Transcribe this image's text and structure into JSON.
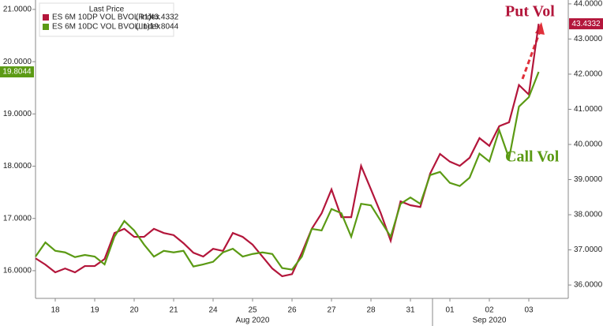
{
  "chart_data": {
    "type": "line",
    "legend_title": "Last Price",
    "categories": [
      null,
      null,
      "18",
      null,
      null,
      null,
      "19",
      null,
      null,
      null,
      "20",
      null,
      null,
      null,
      "21",
      null,
      null,
      null,
      "24",
      null,
      null,
      null,
      "25",
      null,
      null,
      null,
      "26",
      null,
      null,
      null,
      "27",
      null,
      null,
      null,
      "28",
      null,
      null,
      null,
      "31",
      null,
      null,
      null,
      "01",
      null,
      null,
      null,
      "02",
      null,
      null,
      null,
      "03",
      null
    ],
    "months": [
      {
        "label": "Aug 2020",
        "at": 22
      },
      {
        "label": "Sep 2020",
        "at": 46
      }
    ],
    "series": [
      {
        "name": "ES 6M 10DP VOL BVOL Index",
        "tag": "(R1)",
        "color": "#b3163b",
        "axis": "y2",
        "values": [
          36.76,
          36.58,
          36.36,
          36.47,
          36.36,
          36.54,
          36.54,
          36.74,
          37.48,
          37.6,
          37.37,
          37.37,
          37.6,
          37.48,
          37.42,
          37.19,
          36.92,
          36.81,
          37.03,
          36.97,
          37.48,
          37.37,
          37.15,
          36.81,
          36.47,
          36.25,
          36.31,
          36.92,
          37.6,
          38.04,
          38.72,
          37.93,
          37.93,
          39.39,
          38.72,
          38.04,
          37.26,
          38.38,
          38.27,
          38.22,
          39.17,
          39.73,
          39.51,
          39.39,
          39.62,
          40.18,
          39.96,
          40.52,
          40.63,
          41.69,
          41.42,
          43.4332
        ]
      },
      {
        "name": "ES 6M 10DC VOL BVOL Index",
        "tag": "(L1)",
        "color": "#5b9a14",
        "axis": "y",
        "values": [
          16.27,
          16.54,
          16.38,
          16.35,
          16.26,
          16.3,
          16.27,
          16.12,
          16.65,
          16.95,
          16.77,
          16.5,
          16.27,
          16.38,
          16.35,
          16.38,
          16.08,
          16.12,
          16.17,
          16.35,
          16.42,
          16.27,
          16.32,
          16.35,
          16.32,
          16.05,
          16.02,
          16.27,
          16.8,
          16.77,
          17.18,
          17.1,
          16.65,
          17.28,
          17.25,
          16.95,
          16.65,
          17.28,
          17.4,
          17.28,
          17.83,
          17.89,
          17.68,
          17.62,
          17.78,
          18.24,
          18.09,
          18.69,
          18.15,
          19.14,
          19.32,
          19.8044
        ]
      }
    ],
    "ylim": [
      15.47,
      21.18
    ],
    "yticks": [
      {
        "value": 16,
        "label": "16.0000"
      },
      {
        "value": 17,
        "label": "17.0000"
      },
      {
        "value": 18,
        "label": "18.0000"
      },
      {
        "value": 19,
        "label": "19.0000"
      },
      {
        "value": 20,
        "label": "20.0000"
      },
      {
        "value": 21,
        "label": "21.0000"
      }
    ],
    "y2lim": [
      35.62,
      44.11
    ],
    "y2ticks": [
      {
        "value": 36,
        "label": "36.0000"
      },
      {
        "value": 37,
        "label": "37.0000"
      },
      {
        "value": 38,
        "label": "38.0000"
      },
      {
        "value": 39,
        "label": "39.0000"
      },
      {
        "value": 40,
        "label": "40.0000"
      },
      {
        "value": 41,
        "label": "41.0000"
      },
      {
        "value": 42,
        "label": "42.0000"
      },
      {
        "value": 43,
        "label": "43.0000"
      },
      {
        "value": 44,
        "label": "44.0000"
      }
    ],
    "annotations": [
      "Put Vol",
      "Call Vol"
    ]
  }
}
